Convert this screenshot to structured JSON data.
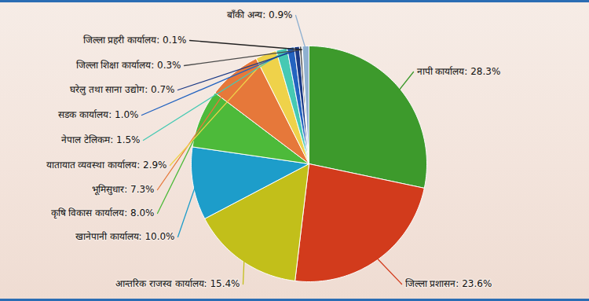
{
  "chart_data": {
    "type": "pie",
    "categories": [
      "नापी कार्यालय: 28.3%",
      "जिल्ला प्रशासन: 23.6%",
      "आन्तरिक राजस्व कार्यालय: 15.4%",
      "खानेपानी कार्यालय: 10.0%",
      "कृषि विकास कार्यालय: 8.0%",
      "भूमिसुधार: 7.3%",
      "यातायात व्यवस्था कार्यालय: 2.9%",
      "नेपाल टेलिकम: 1.5%",
      "सडक कार्यालय: 1.0%",
      "घरेलु तथा साना उद्योग: 0.7%",
      "जिल्ला शिक्षा कार्यालय: 0.3%",
      "जिल्ला प्रहरी कार्यालय: 0.1%",
      "बाँकी अन्य: 0.9%"
    ],
    "values": [
      28.3,
      23.6,
      15.4,
      10.0,
      8.0,
      7.3,
      2.9,
      1.5,
      1.0,
      0.7,
      0.3,
      0.1,
      0.9
    ],
    "colors": [
      "#3d9a2c",
      "#d23b1c",
      "#c2bf1a",
      "#1d9dca",
      "#4dba3a",
      "#e6783a",
      "#efd24a",
      "#46c9b3",
      "#2363c0",
      "#1b3a86",
      "#4a4a4a",
      "#222222",
      "#8fb0d0"
    ],
    "data_labels": true
  }
}
